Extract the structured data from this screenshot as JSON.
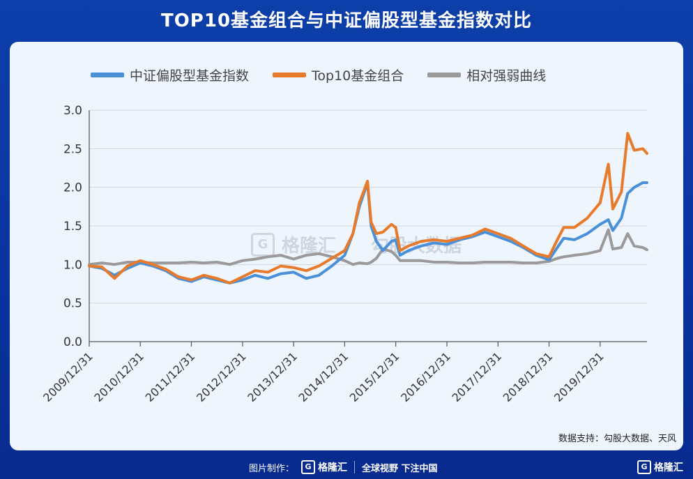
{
  "title": "TOP10基金组合与中证偏股型基金指数对比",
  "source": "数据支持：勾股大数据、天风",
  "footer": {
    "made_by": "图片制作：",
    "logo": "格隆汇",
    "slogan": "全球视野 下注中国",
    "right_logo": "格隆汇"
  },
  "watermark": {
    "logo": "格隆汇",
    "sub": "勾股大数据"
  },
  "colors": {
    "index": "#4a90d9",
    "top10": "#e87a2b",
    "relative": "#9a9a9a"
  },
  "chart_data": {
    "type": "line",
    "title": "",
    "xlabel": "",
    "ylabel": "",
    "ylim": [
      0,
      3.0
    ],
    "yticks": [
      "0.0",
      "0.5",
      "1.0",
      "1.5",
      "2.0",
      "2.5",
      "3.0"
    ],
    "xlim": [
      "2009-12-31",
      "2020-11-30"
    ],
    "xticks": [
      "2009/12/31",
      "2010/12/31",
      "2011/12/31",
      "2012/12/31",
      "2013/12/31",
      "2014/12/31",
      "2015/12/31",
      "2016/12/31",
      "2017/12/31",
      "2018/12/31",
      "2019/12/31"
    ],
    "grid": "horizontal",
    "legend_position": "top-left",
    "series": [
      {
        "name": "中证偏股型基金指数",
        "color": "#4a90d9",
        "x": [
          "2009-12-31",
          "2010-03-31",
          "2010-06-30",
          "2010-09-30",
          "2010-12-31",
          "2011-03-31",
          "2011-06-30",
          "2011-09-30",
          "2011-12-31",
          "2012-03-31",
          "2012-06-30",
          "2012-09-30",
          "2012-12-31",
          "2013-03-31",
          "2013-06-30",
          "2013-09-30",
          "2013-12-31",
          "2014-03-31",
          "2014-06-30",
          "2014-09-30",
          "2014-12-31",
          "2015-02-28",
          "2015-04-15",
          "2015-06-12",
          "2015-07-08",
          "2015-08-15",
          "2015-09-30",
          "2015-11-30",
          "2015-12-31",
          "2016-01-31",
          "2016-03-31",
          "2016-06-30",
          "2016-09-30",
          "2016-12-31",
          "2017-03-31",
          "2017-06-30",
          "2017-09-30",
          "2017-11-30",
          "2017-12-31",
          "2018-03-31",
          "2018-06-30",
          "2018-09-30",
          "2018-12-31",
          "2019-02-28",
          "2019-04-15",
          "2019-06-30",
          "2019-09-30",
          "2019-12-31",
          "2020-02-28",
          "2020-03-31",
          "2020-05-31",
          "2020-07-15",
          "2020-08-31",
          "2020-10-31",
          "2020-11-30"
        ],
        "y": [
          0.98,
          0.95,
          0.86,
          0.95,
          1.02,
          0.98,
          0.92,
          0.82,
          0.78,
          0.84,
          0.8,
          0.76,
          0.8,
          0.86,
          0.82,
          0.88,
          0.9,
          0.82,
          0.86,
          0.98,
          1.12,
          1.4,
          1.75,
          2.06,
          1.5,
          1.3,
          1.18,
          1.3,
          1.32,
          1.12,
          1.18,
          1.24,
          1.28,
          1.26,
          1.32,
          1.36,
          1.42,
          1.38,
          1.36,
          1.3,
          1.22,
          1.12,
          1.06,
          1.22,
          1.34,
          1.32,
          1.4,
          1.52,
          1.58,
          1.44,
          1.6,
          1.92,
          2.0,
          2.06,
          2.06
        ]
      },
      {
        "name": "Top10基金组合",
        "color": "#e87a2b",
        "x": [
          "2009-12-31",
          "2010-03-31",
          "2010-06-30",
          "2010-09-30",
          "2010-12-31",
          "2011-03-31",
          "2011-06-30",
          "2011-09-30",
          "2011-12-31",
          "2012-03-31",
          "2012-06-30",
          "2012-09-30",
          "2012-12-31",
          "2013-03-31",
          "2013-06-30",
          "2013-09-30",
          "2013-12-31",
          "2014-03-31",
          "2014-06-30",
          "2014-09-30",
          "2014-12-31",
          "2015-02-28",
          "2015-04-15",
          "2015-06-12",
          "2015-07-08",
          "2015-08-15",
          "2015-09-30",
          "2015-11-30",
          "2015-12-31",
          "2016-01-31",
          "2016-03-31",
          "2016-06-30",
          "2016-09-30",
          "2016-12-31",
          "2017-03-31",
          "2017-06-30",
          "2017-09-30",
          "2017-11-30",
          "2017-12-31",
          "2018-03-31",
          "2018-06-30",
          "2018-09-30",
          "2018-12-31",
          "2019-02-28",
          "2019-04-15",
          "2019-06-30",
          "2019-09-30",
          "2019-12-31",
          "2020-02-28",
          "2020-03-31",
          "2020-05-31",
          "2020-07-15",
          "2020-08-31",
          "2020-10-31",
          "2020-11-30"
        ],
        "y": [
          0.98,
          0.97,
          0.82,
          0.98,
          1.05,
          1.0,
          0.94,
          0.84,
          0.8,
          0.86,
          0.82,
          0.76,
          0.84,
          0.92,
          0.9,
          0.98,
          0.96,
          0.92,
          0.98,
          1.08,
          1.18,
          1.4,
          1.8,
          2.08,
          1.55,
          1.4,
          1.42,
          1.52,
          1.48,
          1.18,
          1.24,
          1.3,
          1.32,
          1.3,
          1.34,
          1.38,
          1.46,
          1.42,
          1.4,
          1.34,
          1.24,
          1.14,
          1.1,
          1.32,
          1.48,
          1.48,
          1.6,
          1.8,
          2.3,
          1.72,
          1.94,
          2.7,
          2.48,
          2.5,
          2.44
        ]
      },
      {
        "name": "相对强弱曲线",
        "color": "#9a9a9a",
        "x": [
          "2009-12-31",
          "2010-03-31",
          "2010-06-30",
          "2010-09-30",
          "2010-12-31",
          "2011-03-31",
          "2011-06-30",
          "2011-09-30",
          "2011-12-31",
          "2012-03-31",
          "2012-06-30",
          "2012-09-30",
          "2012-12-31",
          "2013-03-31",
          "2013-06-30",
          "2013-09-30",
          "2013-12-31",
          "2014-03-31",
          "2014-06-30",
          "2014-09-30",
          "2014-12-31",
          "2015-02-28",
          "2015-04-15",
          "2015-06-12",
          "2015-07-08",
          "2015-08-15",
          "2015-09-30",
          "2015-11-30",
          "2015-12-31",
          "2016-01-31",
          "2016-03-31",
          "2016-06-30",
          "2016-09-30",
          "2016-12-31",
          "2017-03-31",
          "2017-06-30",
          "2017-09-30",
          "2017-11-30",
          "2017-12-31",
          "2018-03-31",
          "2018-06-30",
          "2018-09-30",
          "2018-12-31",
          "2019-02-28",
          "2019-04-15",
          "2019-06-30",
          "2019-09-30",
          "2019-12-31",
          "2020-02-28",
          "2020-03-31",
          "2020-05-31",
          "2020-07-15",
          "2020-08-31",
          "2020-10-31",
          "2020-11-30"
        ],
        "y": [
          1.0,
          1.02,
          1.0,
          1.03,
          1.03,
          1.02,
          1.02,
          1.02,
          1.03,
          1.02,
          1.03,
          1.0,
          1.05,
          1.07,
          1.1,
          1.12,
          1.07,
          1.12,
          1.14,
          1.1,
          1.05,
          1.0,
          1.02,
          1.01,
          1.03,
          1.08,
          1.2,
          1.17,
          1.12,
          1.05,
          1.05,
          1.05,
          1.03,
          1.03,
          1.02,
          1.02,
          1.03,
          1.03,
          1.03,
          1.03,
          1.02,
          1.02,
          1.04,
          1.08,
          1.1,
          1.12,
          1.14,
          1.18,
          1.45,
          1.2,
          1.22,
          1.4,
          1.24,
          1.22,
          1.19
        ]
      }
    ]
  }
}
